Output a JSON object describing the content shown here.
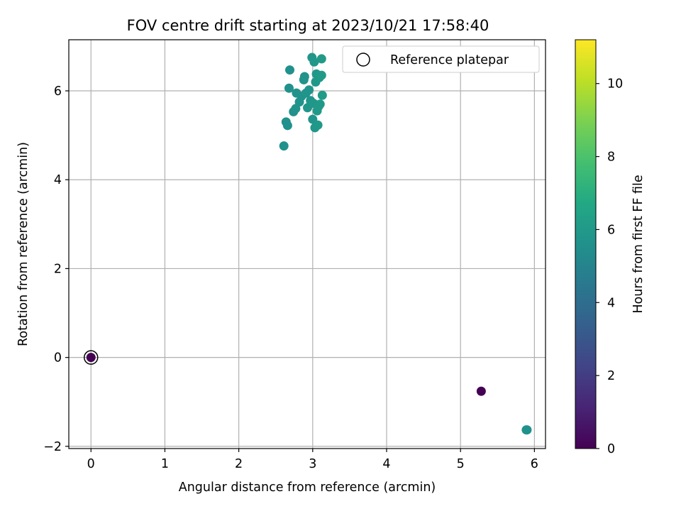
{
  "chart_data": {
    "type": "scatter",
    "title": "FOV centre drift starting at 2023/10/21 17:58:40",
    "xlabel": "Angular distance from reference (arcmin)",
    "ylabel": "Rotation from reference (arcmin)",
    "xlim": [
      -0.3,
      6.15
    ],
    "ylim": [
      -2.05,
      7.15
    ],
    "xticks": [
      0,
      1,
      2,
      3,
      4,
      5,
      6
    ],
    "yticks": [
      -2,
      0,
      2,
      4,
      6
    ],
    "grid": true,
    "legend": {
      "location": "top-right",
      "entries": [
        "Reference platepar"
      ]
    },
    "reference_point": {
      "x": 0,
      "y": 0,
      "marker": "open-circle"
    },
    "colorbar": {
      "label": "Hours from first FF file",
      "colormap": "viridis",
      "range": [
        0,
        11.2
      ],
      "ticks": [
        0,
        2,
        4,
        6,
        8,
        10
      ]
    },
    "points": [
      {
        "x": 0.0,
        "y": 0.0,
        "hours": 0.0
      },
      {
        "x": 5.28,
        "y": -0.76,
        "hours": 0.0
      },
      {
        "x": 5.89,
        "y": -1.63,
        "hours": 5.7
      },
      {
        "x": 5.9,
        "y": -1.63,
        "hours": 5.6
      },
      {
        "x": 2.61,
        "y": 4.76,
        "hours": 5.6
      },
      {
        "x": 2.64,
        "y": 5.3,
        "hours": 5.6
      },
      {
        "x": 2.66,
        "y": 5.22,
        "hours": 5.6
      },
      {
        "x": 2.68,
        "y": 6.06,
        "hours": 5.6
      },
      {
        "x": 2.69,
        "y": 6.47,
        "hours": 5.6
      },
      {
        "x": 2.74,
        "y": 5.53,
        "hours": 5.6
      },
      {
        "x": 2.77,
        "y": 5.6,
        "hours": 5.7
      },
      {
        "x": 2.78,
        "y": 5.95,
        "hours": 5.7
      },
      {
        "x": 2.82,
        "y": 5.75,
        "hours": 5.7
      },
      {
        "x": 2.85,
        "y": 5.88,
        "hours": 5.7
      },
      {
        "x": 2.88,
        "y": 6.25,
        "hours": 5.7
      },
      {
        "x": 2.89,
        "y": 6.32,
        "hours": 5.7
      },
      {
        "x": 2.91,
        "y": 5.95,
        "hours": 5.8
      },
      {
        "x": 2.93,
        "y": 5.62,
        "hours": 5.8
      },
      {
        "x": 2.95,
        "y": 6.02,
        "hours": 5.8
      },
      {
        "x": 2.97,
        "y": 5.78,
        "hours": 5.8
      },
      {
        "x": 2.99,
        "y": 6.75,
        "hours": 5.8
      },
      {
        "x": 3.0,
        "y": 5.36,
        "hours": 5.8
      },
      {
        "x": 3.01,
        "y": 5.72,
        "hours": 5.9
      },
      {
        "x": 3.02,
        "y": 6.65,
        "hours": 5.9
      },
      {
        "x": 3.03,
        "y": 5.17,
        "hours": 5.9
      },
      {
        "x": 3.04,
        "y": 6.2,
        "hours": 5.9
      },
      {
        "x": 3.05,
        "y": 6.38,
        "hours": 5.9
      },
      {
        "x": 3.06,
        "y": 5.55,
        "hours": 6.0
      },
      {
        "x": 3.07,
        "y": 5.23,
        "hours": 6.0
      },
      {
        "x": 3.08,
        "y": 5.65,
        "hours": 6.0
      },
      {
        "x": 3.09,
        "y": 6.3,
        "hours": 6.0
      },
      {
        "x": 3.1,
        "y": 5.7,
        "hours": 6.0
      },
      {
        "x": 3.12,
        "y": 6.35,
        "hours": 6.1
      },
      {
        "x": 3.12,
        "y": 6.72,
        "hours": 6.1
      },
      {
        "x": 3.13,
        "y": 5.9,
        "hours": 6.1
      }
    ]
  }
}
